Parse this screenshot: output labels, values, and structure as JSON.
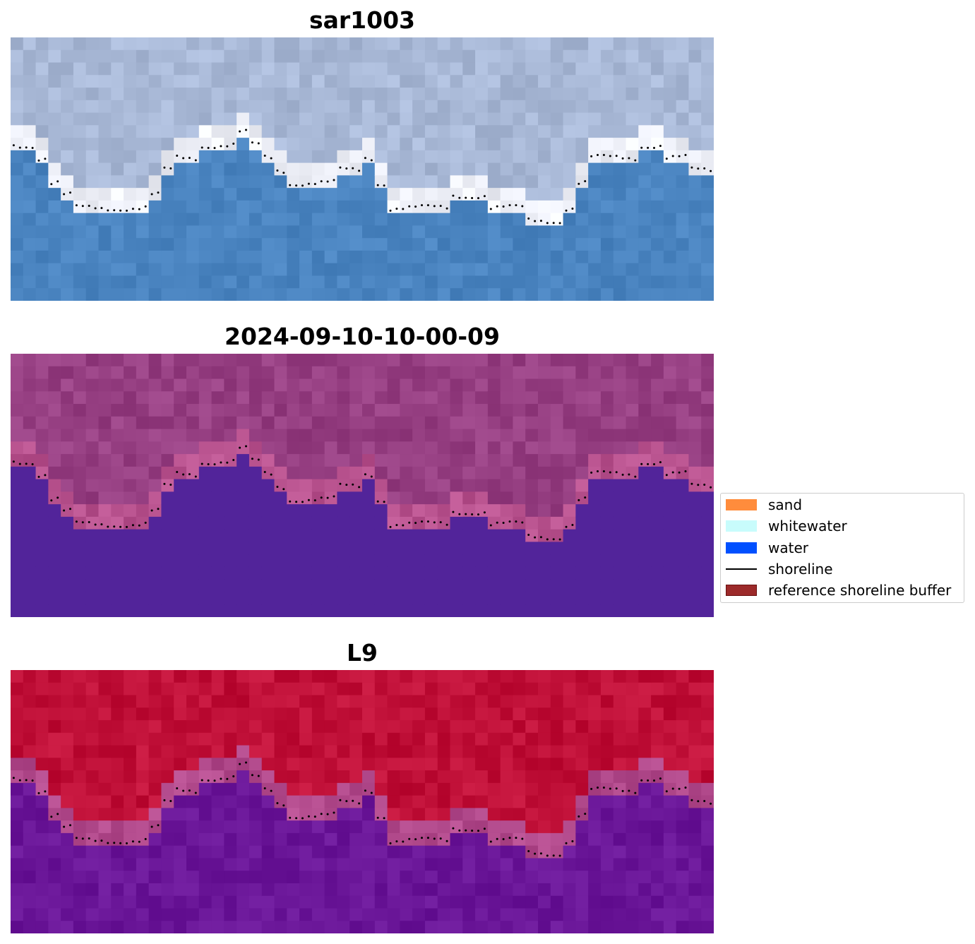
{
  "panels": [
    {
      "title": "sar1003",
      "style": "rgb",
      "water_color": "#4a84c0",
      "land_color": "#a8b8d6",
      "whitewater_color": "#eef0f8"
    },
    {
      "title": "2024-09-10-10-00-09",
      "style": "classified",
      "water_color": "#52249a",
      "land_color": "#963f82",
      "whitewater_color": "#b8528e"
    },
    {
      "title": "L9",
      "style": "index",
      "water_color": "#6a1698",
      "land_color": "#c01038",
      "whitewater_color": "#b24a8c"
    }
  ],
  "legend": {
    "items": [
      {
        "label": "sand",
        "kind": "patch",
        "color": "#ff8c3c",
        "edge": "#ff8c3c"
      },
      {
        "label": "whitewater",
        "kind": "patch",
        "color": "#c8fcfc",
        "edge": "#c8fcfc"
      },
      {
        "label": "water",
        "kind": "patch",
        "color": "#0050ff",
        "edge": "#0050ff"
      },
      {
        "label": "shoreline",
        "kind": "line",
        "color": "#000000",
        "edge": "#000000"
      },
      {
        "label": "reference shoreline buffer",
        "kind": "patch",
        "color": "#9c2a2a",
        "edge": "#6a1010"
      }
    ]
  },
  "shoreline_color": "#000000"
}
